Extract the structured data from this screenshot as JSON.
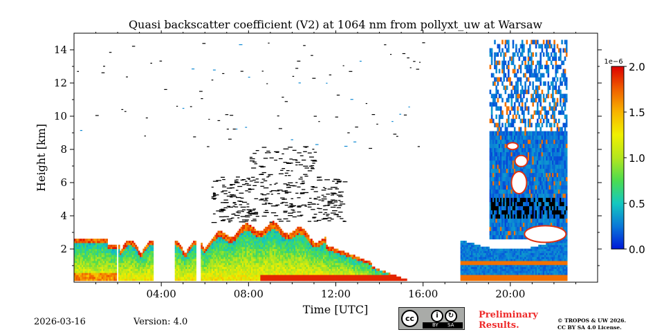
{
  "chart_data": {
    "type": "heatmap",
    "title": "Quasi backscatter coefficient (V2) at 1064 nm from pollyxt_uw at Warsaw",
    "xlabel": "Time [UTC]",
    "ylabel": "Height [km]",
    "xlim_hours": [
      0,
      24
    ],
    "ylim_km": [
      0,
      15
    ],
    "x_ticks": [
      {
        "value": 4,
        "label": "04:00"
      },
      {
        "value": 8,
        "label": "08:00"
      },
      {
        "value": 12,
        "label": "12:00"
      },
      {
        "value": 16,
        "label": "16:00"
      },
      {
        "value": 20,
        "label": "20:00"
      }
    ],
    "y_ticks": [
      {
        "value": 2,
        "label": "2"
      },
      {
        "value": 4,
        "label": "4"
      },
      {
        "value": 6,
        "label": "6"
      },
      {
        "value": 8,
        "label": "8"
      },
      {
        "value": 10,
        "label": "10"
      },
      {
        "value": 12,
        "label": "12"
      },
      {
        "value": 14,
        "label": "14"
      }
    ],
    "colorbar": {
      "scale_label": "1e−6",
      "range": [
        0.0,
        2.0
      ],
      "ticks": [
        "0.0",
        "0.5",
        "1.0",
        "1.5",
        "2.0"
      ],
      "tick_values": [
        0.0,
        0.5,
        1.0,
        1.5,
        2.0
      ],
      "colors": [
        "#0018d8",
        "#0a78d8",
        "#14c8c0",
        "#4cdc50",
        "#b4e61e",
        "#f0f000",
        "#f8b400",
        "#f06000",
        "#dc0000"
      ]
    },
    "layers": [
      {
        "name": "boundary-layer-aerosol",
        "t_start": 0.0,
        "t_end": 22.5,
        "h_base": 0.1,
        "h_top_range": [
          1.0,
          3.2
        ]
      },
      {
        "name": "near-surface-enhancement",
        "t_start": 8.5,
        "t_end": 15.2,
        "h_base": 0.1,
        "h_top": 0.5,
        "value": 2.0
      },
      {
        "name": "evening-residual-layer",
        "t_start": 17.7,
        "t_end": 22.6,
        "h_base": 0.1,
        "h_top": 2.5
      },
      {
        "name": "cloud-column",
        "t_start": 19.0,
        "t_end": 22.6,
        "h_base": 2.5,
        "h_top": 14.5
      }
    ]
  },
  "footer": {
    "date": "2026-03-16",
    "version": "Version: 4.0",
    "preliminary": [
      "Preliminary",
      "Results."
    ],
    "copyright": [
      "© TROPOS & UW 2026.",
      "CC BY SA 4.0 License."
    ],
    "license_badge": {
      "main": "cc",
      "by": "BY",
      "sa": "SA"
    }
  }
}
